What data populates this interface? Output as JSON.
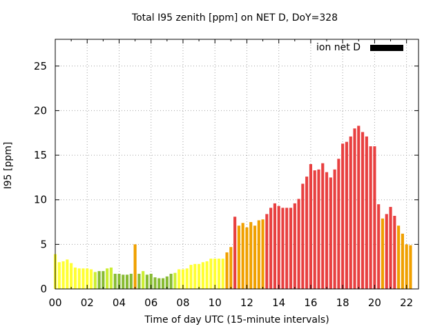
{
  "chart_data": {
    "type": "bar",
    "title": "Total I95 zenith [ppm] on NET D, DoY=328",
    "xlabel": "Time of day UTC (15-minute intervals)",
    "ylabel": "I95 [ppm]",
    "ylim": [
      0,
      28
    ],
    "xlim": [
      0,
      22.75
    ],
    "yticks": [
      0,
      5,
      10,
      15,
      20,
      25
    ],
    "xtick_labels": [
      "00",
      "02",
      "04",
      "06",
      "08",
      "10",
      "12",
      "14",
      "16",
      "18",
      "20",
      "22"
    ],
    "grid": true,
    "legend_position": "top-right",
    "interval_hours": 0.25,
    "color_scale": {
      "yellow": "#ffff33",
      "yellow-green": "#ccee33",
      "green": "#88bb33",
      "orange": "#f0a000",
      "red": "#e84040"
    },
    "series": [
      {
        "name": "ion net D",
        "values": [
          3.9,
          3.0,
          3.1,
          3.3,
          2.9,
          2.4,
          2.3,
          2.3,
          2.3,
          2.2,
          1.9,
          2.0,
          2.0,
          2.3,
          2.4,
          1.7,
          1.7,
          1.6,
          1.6,
          1.7,
          5.0,
          1.7,
          2.0,
          1.6,
          1.7,
          1.3,
          1.2,
          1.2,
          1.4,
          1.7,
          1.8,
          2.2,
          2.2,
          2.3,
          2.7,
          2.8,
          2.8,
          3.0,
          3.1,
          3.4,
          3.4,
          3.4,
          3.4,
          4.1,
          4.7,
          8.1,
          7.1,
          7.4,
          6.9,
          7.5,
          7.1,
          7.7,
          7.8,
          8.4,
          9.1,
          9.6,
          9.3,
          9.1,
          9.1,
          9.1,
          9.6,
          10.1,
          11.8,
          12.6,
          14.0,
          13.3,
          13.4,
          14.1,
          13.1,
          12.5,
          13.4,
          14.6,
          16.3,
          16.5,
          17.1,
          18.0,
          18.3,
          17.6,
          17.1,
          16.0,
          16.0,
          9.5,
          7.9,
          8.4,
          9.2,
          8.2,
          7.1,
          6.2,
          5.0,
          4.9
        ],
        "colors": [
          "yellow",
          "yellow",
          "yellow",
          "yellow",
          "yellow",
          "yellow",
          "yellow",
          "yellow",
          "yellow",
          "yellow",
          "yellow-green",
          "green",
          "green",
          "yellow-green",
          "yellow-green",
          "green",
          "green",
          "green",
          "green",
          "green",
          "orange",
          "green",
          "yellow-green",
          "green",
          "green",
          "green",
          "green",
          "green",
          "green",
          "green",
          "yellow-green",
          "yellow",
          "yellow",
          "yellow",
          "yellow",
          "yellow",
          "yellow",
          "yellow",
          "yellow",
          "yellow",
          "yellow",
          "yellow",
          "yellow",
          "orange",
          "orange",
          "red",
          "orange",
          "orange",
          "orange",
          "orange",
          "orange",
          "orange",
          "orange",
          "red",
          "red",
          "red",
          "red",
          "red",
          "red",
          "red",
          "red",
          "red",
          "red",
          "red",
          "red",
          "red",
          "red",
          "red",
          "red",
          "red",
          "red",
          "red",
          "red",
          "red",
          "red",
          "red",
          "red",
          "red",
          "red",
          "red",
          "red",
          "red",
          "orange",
          "red",
          "red",
          "red",
          "orange",
          "orange",
          "orange",
          "orange"
        ]
      }
    ]
  }
}
